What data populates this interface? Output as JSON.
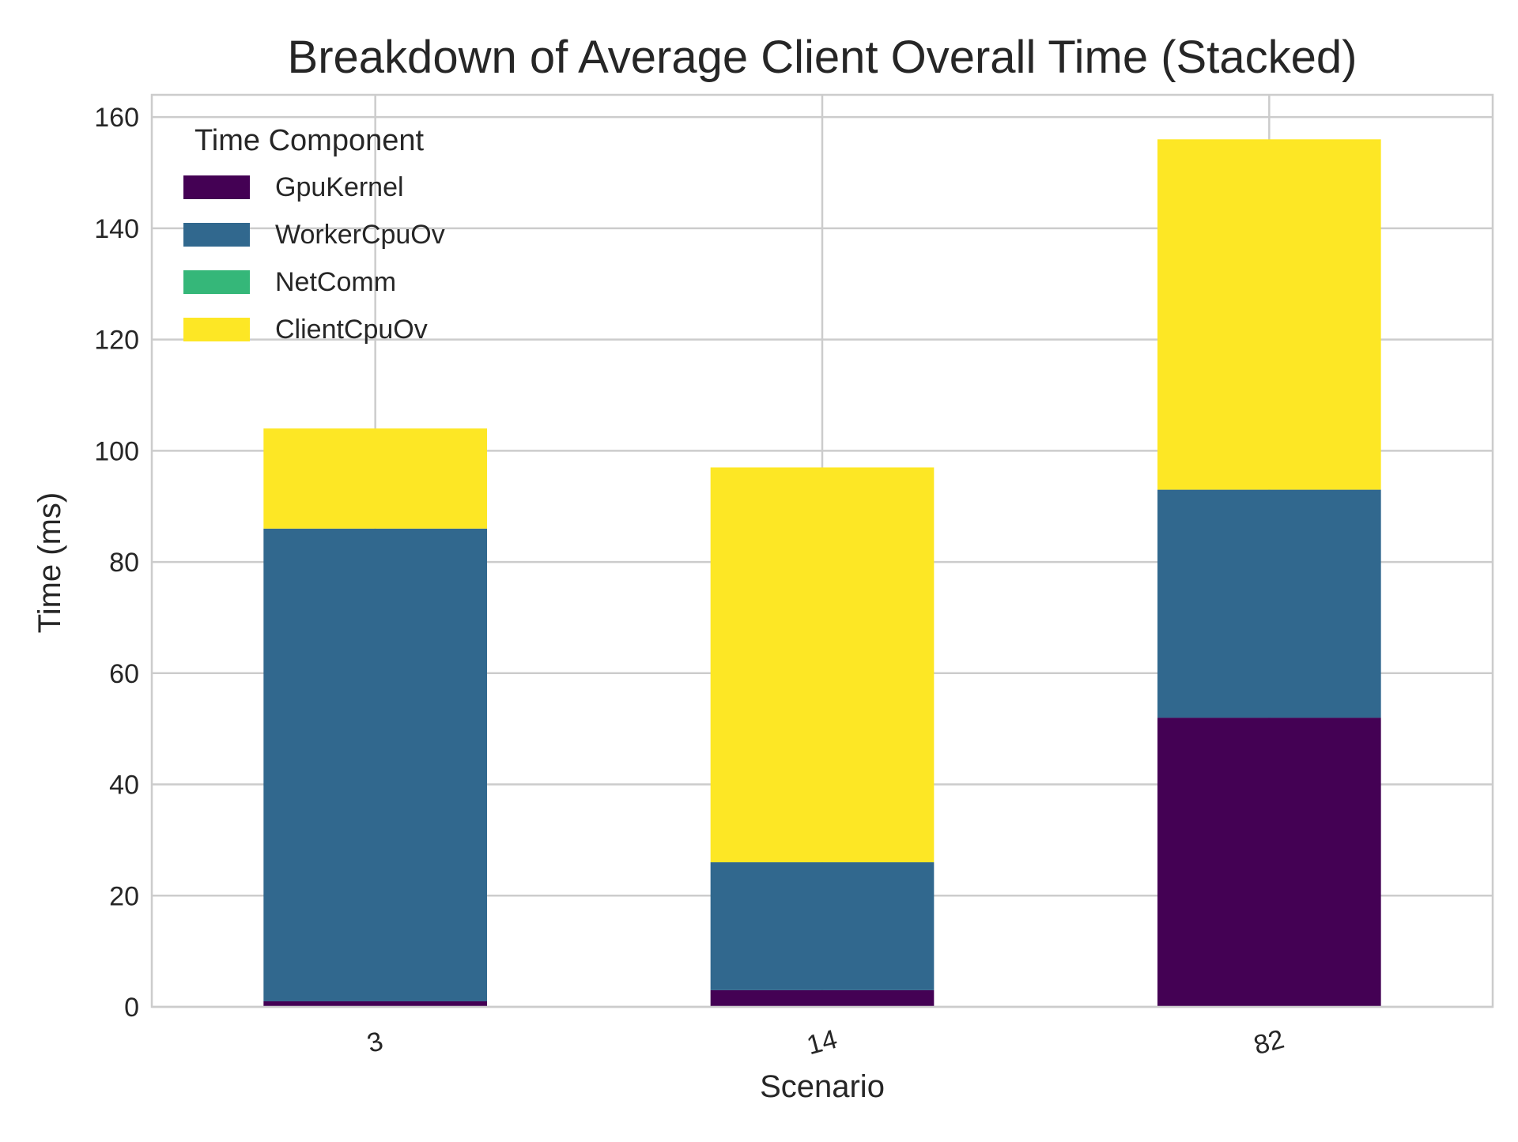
{
  "chart_data": {
    "type": "bar",
    "stacked": true,
    "title": "Breakdown of Average Client Overall Time (Stacked)",
    "xlabel": "Scenario",
    "ylabel": "Time (ms)",
    "categories": [
      "3",
      "14",
      "82"
    ],
    "ylim": [
      0,
      164
    ],
    "yticks": [
      0,
      20,
      40,
      60,
      80,
      100,
      120,
      140,
      160
    ],
    "grid": true,
    "legend": {
      "title": "Time Component",
      "position": "top-left"
    },
    "series": [
      {
        "name": "GpuKernel",
        "color": "#440154",
        "values": [
          1,
          3,
          52
        ]
      },
      {
        "name": "WorkerCpuOv",
        "color": "#31688e",
        "values": [
          85,
          23,
          41
        ]
      },
      {
        "name": "NetComm",
        "color": "#35b779",
        "values": [
          0,
          0,
          0
        ]
      },
      {
        "name": "ClientCpuOv",
        "color": "#fde725",
        "values": [
          18,
          71,
          63
        ]
      }
    ]
  }
}
